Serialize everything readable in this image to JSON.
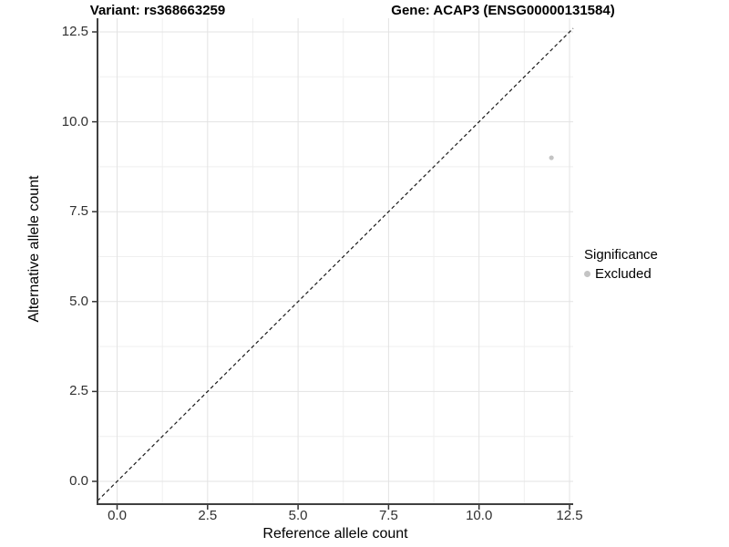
{
  "chart_data": {
    "type": "scatter",
    "title_left": "Variant: rs368663259",
    "title_right": "Gene: ACAP3 (ENSG00000131584)",
    "xlabel": "Reference allele count",
    "ylabel": "Alternative allele count",
    "x_ticks": [
      0,
      2.5,
      5,
      7.5,
      10,
      12.5
    ],
    "x_tick_labels": [
      "0.0",
      "2.5",
      "5.0",
      "7.5",
      "10.0",
      "12.5"
    ],
    "y_ticks": [
      0,
      2.5,
      5,
      7.5,
      10,
      12.5
    ],
    "y_tick_labels": [
      "0.0",
      "2.5",
      "5.0",
      "7.5",
      "10.0",
      "12.5"
    ],
    "xlim": [
      -0.54,
      12.61
    ],
    "ylim": [
      -0.63,
      12.9
    ],
    "grid": "major+minor",
    "identity_line": {
      "equation": "y = x",
      "style": "dashed",
      "color": "#1a1a1a"
    },
    "series": [
      {
        "name": "Excluded",
        "color": "#c4c4c4",
        "points": [
          {
            "x": 12,
            "y": 9
          }
        ]
      }
    ],
    "legend": {
      "title": "Significance",
      "position": "right",
      "items": [
        {
          "label": "Excluded",
          "color": "#c4c4c4"
        }
      ]
    },
    "colors": {
      "background": "#ffffff",
      "grid_major": "#e3e3e3",
      "grid_minor": "#efefef",
      "axis_line": "#404040",
      "tick_mark": "#333333",
      "tick_label": "#303030",
      "text": "#000000"
    }
  }
}
